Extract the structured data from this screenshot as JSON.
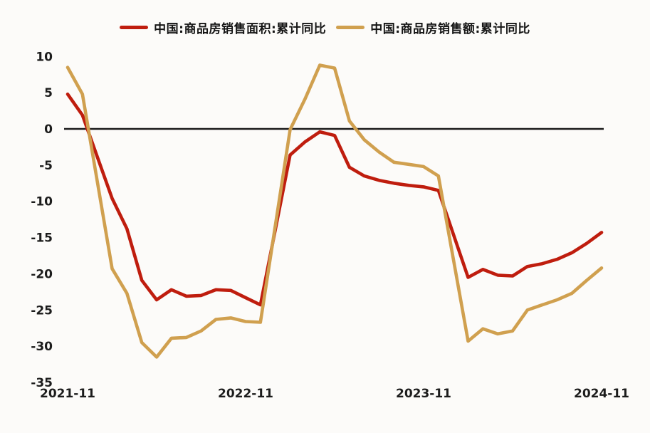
{
  "window": {
    "background": "#fcfbf9"
  },
  "legend": {
    "items": [
      {
        "id": "sales-area",
        "label": "中国:商品房销售面积:累计同比",
        "color": "#bf1d0e"
      },
      {
        "id": "sales-value",
        "label": "中国:商品房销售额:累计同比",
        "color": "#d0a04f"
      }
    ]
  },
  "chart_data": {
    "type": "line",
    "title": "",
    "xlabel": "",
    "ylabel": "",
    "x_unit": "months since 2021-11 (January points not reported; Dec connects to Feb)",
    "x": [
      0,
      1,
      3,
      4,
      5,
      6,
      7,
      8,
      9,
      10,
      11,
      12,
      13,
      15,
      16,
      17,
      18,
      19,
      20,
      21,
      22,
      23,
      24,
      25,
      27,
      28,
      29,
      30,
      31,
      32,
      33,
      34,
      35,
      36
    ],
    "categories": [
      "2021-11",
      "2021-12",
      "2022-02",
      "2022-03",
      "2022-04",
      "2022-05",
      "2022-06",
      "2022-07",
      "2022-08",
      "2022-09",
      "2022-10",
      "2022-11",
      "2022-12",
      "2023-02",
      "2023-03",
      "2023-04",
      "2023-05",
      "2023-06",
      "2023-07",
      "2023-08",
      "2023-09",
      "2023-10",
      "2023-11",
      "2023-12",
      "2024-02",
      "2024-03",
      "2024-04",
      "2024-05",
      "2024-06",
      "2024-07",
      "2024-08",
      "2024-09",
      "2024-10",
      "2024-11"
    ],
    "series": [
      {
        "name": "中国:商品房销售面积:累计同比",
        "color": "#bf1d0e",
        "values": [
          4.8,
          1.9,
          -9.6,
          -13.8,
          -20.9,
          -23.6,
          -22.2,
          -23.1,
          -23.0,
          -22.2,
          -22.3,
          -23.3,
          -24.3,
          -3.6,
          -1.8,
          -0.4,
          -0.9,
          -5.3,
          -6.5,
          -7.1,
          -7.5,
          -7.8,
          -8.0,
          -8.5,
          -20.5,
          -19.4,
          -20.2,
          -20.3,
          -19.0,
          -18.6,
          -18.0,
          -17.1,
          -15.8,
          -14.3
        ]
      },
      {
        "name": "中国:商品房销售额:累计同比",
        "color": "#d0a04f",
        "values": [
          8.5,
          4.8,
          -19.3,
          -22.7,
          -29.5,
          -31.5,
          -28.9,
          -28.8,
          -27.9,
          -26.3,
          -26.1,
          -26.6,
          -26.7,
          -0.1,
          4.1,
          8.8,
          8.4,
          1.1,
          -1.5,
          -3.2,
          -4.6,
          -4.9,
          -5.2,
          -6.5,
          -29.3,
          -27.6,
          -28.3,
          -27.9,
          -25.0,
          -24.3,
          -23.6,
          -22.7,
          -20.9,
          -19.2
        ]
      }
    ],
    "yticks": [
      10,
      5,
      0,
      -5,
      -10,
      -15,
      -20,
      -25,
      -30,
      -35
    ],
    "xticks": [
      {
        "month": 0,
        "label": "2021-11"
      },
      {
        "month": 12,
        "label": "2022-11"
      },
      {
        "month": 24,
        "label": "2023-11"
      },
      {
        "month": 36,
        "label": "2024-11"
      }
    ],
    "ylim": [
      -35,
      10
    ],
    "xlim": [
      0,
      36
    ],
    "grid": false,
    "zero_axis_line": true,
    "axis_color": "#1a1a1a",
    "legend_position": "top-center"
  }
}
